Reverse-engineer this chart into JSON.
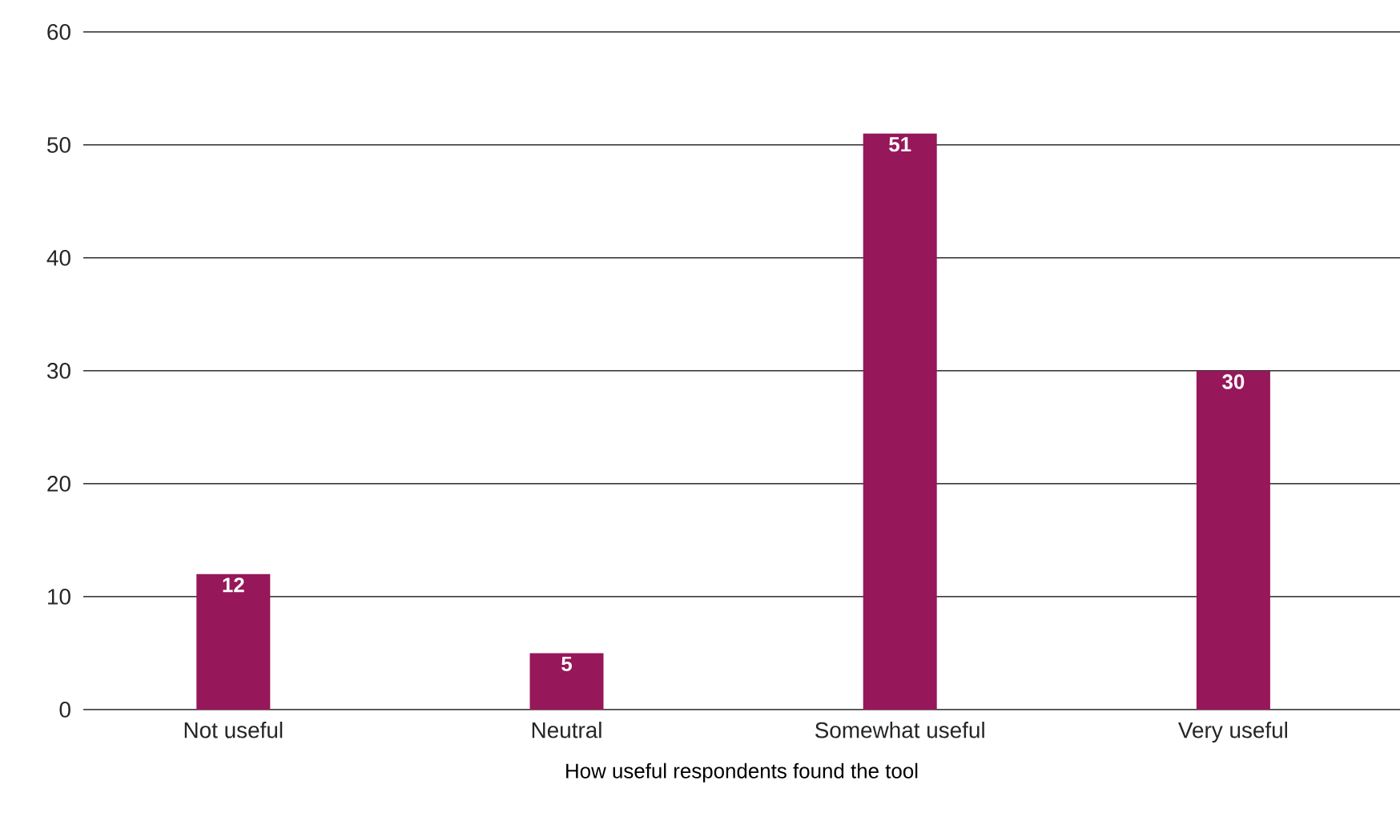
{
  "chart_data": {
    "type": "bar",
    "xlabel": "How useful respondents found the tool",
    "categories": [
      "Not useful",
      "Neutral",
      "Somewhat useful",
      "Very useful"
    ],
    "values": [
      12,
      5,
      51,
      30
    ],
    "color": "#96175a",
    "ylim": [
      0,
      60
    ],
    "yticks": [
      0,
      10,
      20,
      30,
      40,
      50,
      60
    ],
    "grid": "y",
    "data_labels": true
  }
}
